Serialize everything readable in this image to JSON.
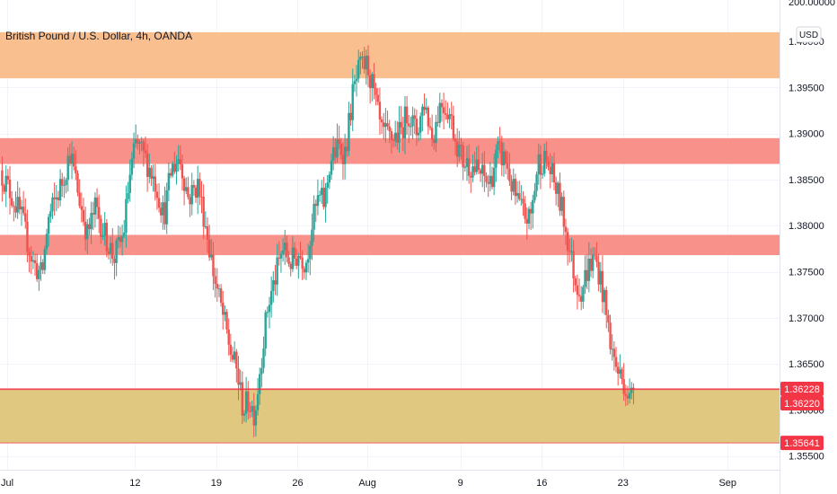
{
  "chart_data": {
    "type": "candlestick",
    "title": "British Pound / U.S. Dollar, 4h, OANDA",
    "currency": "USD",
    "y_range": [
      1.3535,
      1.4045
    ],
    "x_range_days": [
      0,
      66
    ],
    "y_ticks": [
      {
        "value": 1.355,
        "label": "1.35500"
      },
      {
        "value": 1.36,
        "label": "1.36000"
      },
      {
        "value": 1.365,
        "label": "1.36500"
      },
      {
        "value": 1.37,
        "label": "1.37000"
      },
      {
        "value": 1.375,
        "label": "1.37500"
      },
      {
        "value": 1.38,
        "label": "1.38000"
      },
      {
        "value": 1.385,
        "label": "1.38500"
      },
      {
        "value": 1.39,
        "label": "1.39000"
      },
      {
        "value": 1.395,
        "label": "1.39500"
      },
      {
        "value": 1.4,
        "label": "1.40000"
      }
    ],
    "top_partial_label": "200.00000",
    "x_ticks": [
      {
        "label": "Jul",
        "day": 0
      },
      {
        "label": "12",
        "day": 11
      },
      {
        "label": "19",
        "day": 18
      },
      {
        "label": "26",
        "day": 25
      },
      {
        "label": "Aug",
        "day": 31
      },
      {
        "label": "9",
        "day": 39
      },
      {
        "label": "16",
        "day": 46
      },
      {
        "label": "23",
        "day": 53
      },
      {
        "label": "Sep",
        "day": 62
      }
    ],
    "zones": [
      {
        "y_top": 1.401,
        "y_bottom": 1.396,
        "color": "#f9bf8f"
      },
      {
        "y_top": 1.3895,
        "y_bottom": 1.3867,
        "color": "#f7918a"
      },
      {
        "y_top": 1.379,
        "y_bottom": 1.3768,
        "color": "#f7918a"
      },
      {
        "y_top": 1.3622,
        "y_bottom": 1.35641,
        "color": "#e0c880"
      }
    ],
    "price_tags": [
      {
        "value": 1.36228,
        "label": "1.36228",
        "color": "#f23645"
      },
      {
        "value": 1.3622,
        "label": "1.36220",
        "color": "#f23645"
      },
      {
        "value": 1.35641,
        "label": "1.35641",
        "color": "#f23645"
      }
    ],
    "up_color": "#26a69a",
    "down_color": "#ef5350",
    "path": [
      {
        "d": -0.6,
        "p": 1.386
      },
      {
        "d": 1.2,
        "p": 1.381
      },
      {
        "d": 2.2,
        "p": 1.376
      },
      {
        "d": 3.0,
        "p": 1.3745
      },
      {
        "d": 3.5,
        "p": 1.3805
      },
      {
        "d": 4.8,
        "p": 1.385
      },
      {
        "d": 5.4,
        "p": 1.388
      },
      {
        "d": 6.2,
        "p": 1.383
      },
      {
        "d": 6.9,
        "p": 1.379
      },
      {
        "d": 7.6,
        "p": 1.382
      },
      {
        "d": 8.4,
        "p": 1.379
      },
      {
        "d": 9.2,
        "p": 1.3765
      },
      {
        "d": 10.0,
        "p": 1.379
      },
      {
        "d": 10.5,
        "p": 1.385
      },
      {
        "d": 11.1,
        "p": 1.389
      },
      {
        "d": 12.0,
        "p": 1.387
      },
      {
        "d": 12.8,
        "p": 1.3845
      },
      {
        "d": 13.5,
        "p": 1.381
      },
      {
        "d": 14.1,
        "p": 1.386
      },
      {
        "d": 14.8,
        "p": 1.3875
      },
      {
        "d": 15.6,
        "p": 1.383
      },
      {
        "d": 16.4,
        "p": 1.3845
      },
      {
        "d": 17.1,
        "p": 1.38
      },
      {
        "d": 17.8,
        "p": 1.3745
      },
      {
        "d": 18.6,
        "p": 1.37
      },
      {
        "d": 19.2,
        "p": 1.3665
      },
      {
        "d": 19.8,
        "p": 1.364
      },
      {
        "d": 20.3,
        "p": 1.36
      },
      {
        "d": 20.8,
        "p": 1.361
      },
      {
        "d": 21.3,
        "p": 1.3595
      },
      {
        "d": 21.8,
        "p": 1.365
      },
      {
        "d": 22.4,
        "p": 1.371
      },
      {
        "d": 23.0,
        "p": 1.374
      },
      {
        "d": 23.7,
        "p": 1.3775
      },
      {
        "d": 24.4,
        "p": 1.376
      },
      {
        "d": 25.1,
        "p": 1.377
      },
      {
        "d": 25.7,
        "p": 1.376
      },
      {
        "d": 26.2,
        "p": 1.38
      },
      {
        "d": 26.8,
        "p": 1.383
      },
      {
        "d": 27.3,
        "p": 1.3825
      },
      {
        "d": 27.8,
        "p": 1.387
      },
      {
        "d": 28.5,
        "p": 1.3885
      },
      {
        "d": 29.1,
        "p": 1.388
      },
      {
        "d": 29.7,
        "p": 1.394
      },
      {
        "d": 30.3,
        "p": 1.397
      },
      {
        "d": 31.0,
        "p": 1.3975
      },
      {
        "d": 31.6,
        "p": 1.394
      },
      {
        "d": 32.2,
        "p": 1.39
      },
      {
        "d": 33.0,
        "p": 1.3895
      },
      {
        "d": 33.8,
        "p": 1.39
      },
      {
        "d": 34.5,
        "p": 1.3925
      },
      {
        "d": 35.2,
        "p": 1.39
      },
      {
        "d": 35.9,
        "p": 1.3935
      },
      {
        "d": 36.6,
        "p": 1.3895
      },
      {
        "d": 37.3,
        "p": 1.3935
      },
      {
        "d": 38.0,
        "p": 1.3925
      },
      {
        "d": 38.6,
        "p": 1.3895
      },
      {
        "d": 39.2,
        "p": 1.387
      },
      {
        "d": 40.0,
        "p": 1.3865
      },
      {
        "d": 40.8,
        "p": 1.3855
      },
      {
        "d": 41.5,
        "p": 1.3845
      },
      {
        "d": 42.2,
        "p": 1.388
      },
      {
        "d": 42.9,
        "p": 1.387
      },
      {
        "d": 43.6,
        "p": 1.3835
      },
      {
        "d": 44.3,
        "p": 1.3815
      },
      {
        "d": 45.0,
        "p": 1.3805
      },
      {
        "d": 45.7,
        "p": 1.387
      },
      {
        "d": 46.4,
        "p": 1.387
      },
      {
        "d": 47.0,
        "p": 1.385
      },
      {
        "d": 47.7,
        "p": 1.382
      },
      {
        "d": 48.3,
        "p": 1.378
      },
      {
        "d": 48.9,
        "p": 1.374
      },
      {
        "d": 49.4,
        "p": 1.373
      },
      {
        "d": 50.0,
        "p": 1.3755
      },
      {
        "d": 50.6,
        "p": 1.3765
      },
      {
        "d": 51.1,
        "p": 1.374
      },
      {
        "d": 51.6,
        "p": 1.37
      },
      {
        "d": 52.1,
        "p": 1.366
      },
      {
        "d": 52.6,
        "p": 1.364
      },
      {
        "d": 53.1,
        "p": 1.363
      },
      {
        "d": 53.6,
        "p": 1.361
      },
      {
        "d": 53.9,
        "p": 1.3623
      }
    ]
  }
}
